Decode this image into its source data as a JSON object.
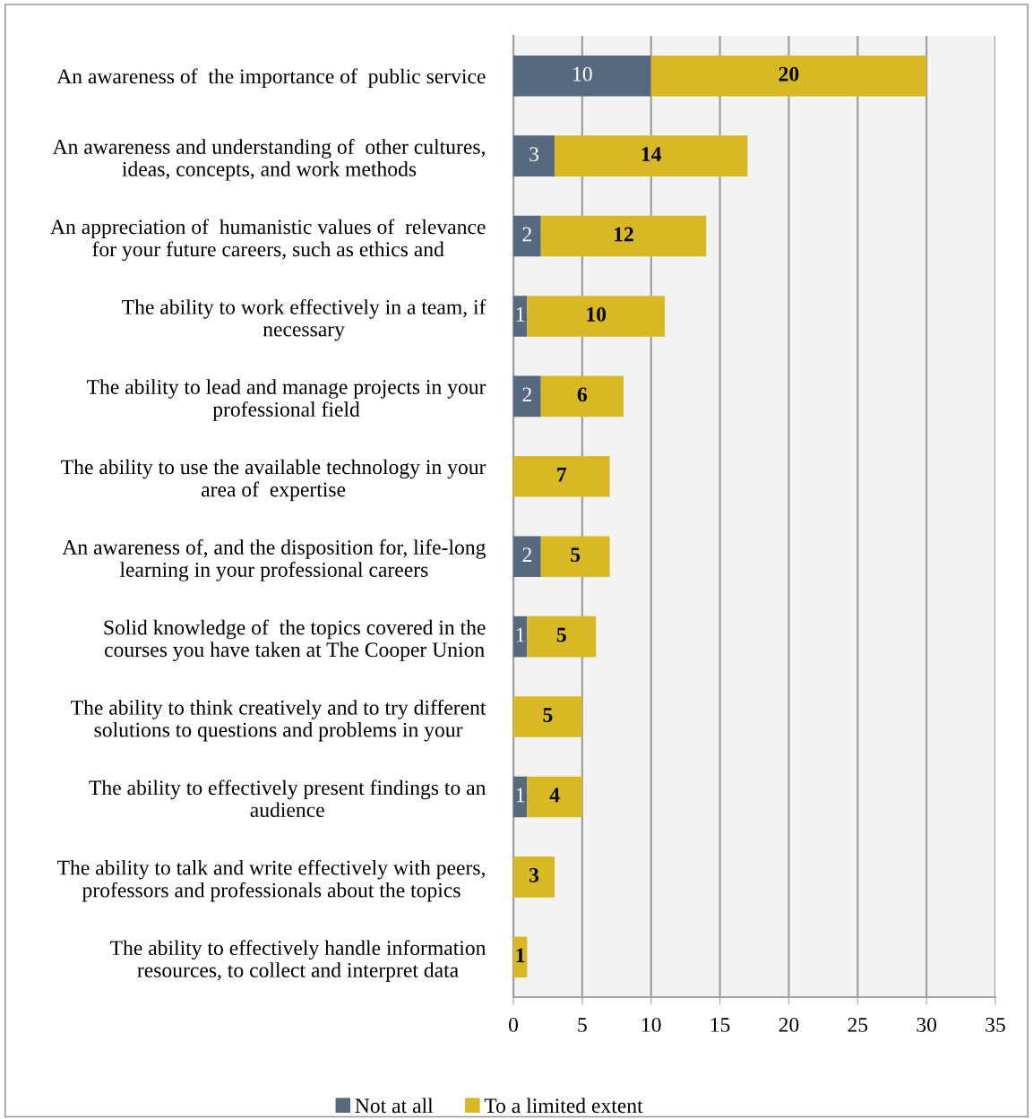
{
  "chart_data": {
    "type": "bar",
    "orientation": "horizontal",
    "stacked": true,
    "data_labels": true,
    "grid": "x",
    "legend": "bottom",
    "categories": [
      "An awareness of  the importance of  public service",
      "An awareness and understanding of  other cultures,\nideas, concepts, and work methods",
      "An appreciation of  humanistic values of  relevance\nfor your future careers, such as ethics and",
      "The ability to work effectively in a team, if\nnecessary",
      "The ability to lead and manage projects in your\nprofessional field",
      "The ability to use the available technology in your\narea of  expertise",
      "An awareness of, and the disposition for, life-long\nlearning in your professional careers",
      "Solid knowledge of  the topics covered in the\ncourses you have taken at The Cooper Union",
      "The ability to think creatively and to try different\nsolutions to questions and problems in your",
      "The ability to effectively present findings to an\naudience",
      "The ability to talk and write effectively with peers,\nprofessors and professionals about the topics",
      "The ability to effectively handle information\nresources, to collect and interpret data"
    ],
    "series": [
      {
        "name": "Not at all",
        "color": "#56697f",
        "values": [
          10,
          3,
          2,
          1,
          2,
          null,
          2,
          1,
          null,
          1,
          null,
          null
        ]
      },
      {
        "name": "To a limited extent",
        "color": "#d8b825",
        "values": [
          20,
          14,
          12,
          10,
          6,
          7,
          5,
          5,
          5,
          4,
          3,
          1
        ]
      }
    ],
    "xlim": [
      0,
      35
    ],
    "xticks": [
      0,
      5,
      10,
      15,
      20,
      25,
      30,
      35
    ]
  }
}
